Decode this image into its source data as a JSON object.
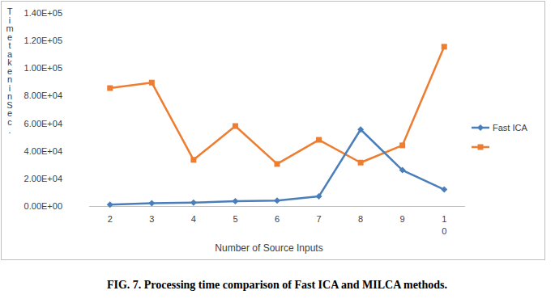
{
  "chart_data": {
    "type": "line",
    "caption": "FIG. 7. Processing time comparison of Fast ICA and MILCA methods.",
    "x_label": "Number of Source Inputs",
    "y_label": "Time taken in Sec.",
    "categories": [
      "2",
      "3",
      "4",
      "5",
      "6",
      "7",
      "8",
      "9",
      "10"
    ],
    "series": [
      {
        "name": "Fast ICA",
        "color": "#4a7ebb",
        "marker": "diamond",
        "values": [
          1000,
          2000,
          2500,
          3500,
          4000,
          7000,
          55500,
          26000,
          12000
        ]
      },
      {
        "name": null,
        "color": "#ed7d31",
        "marker": "square",
        "values": [
          85500,
          89500,
          33500,
          58000,
          30500,
          48000,
          31500,
          44000,
          115500
        ]
      }
    ],
    "ylim": [
      0,
      140000
    ],
    "yticks": [
      {
        "value": 0,
        "label": "0.00E+00"
      },
      {
        "value": 20000,
        "label": "2.00E+04"
      },
      {
        "value": 40000,
        "label": "4.00E+04"
      },
      {
        "value": 60000,
        "label": "6.00E+04"
      },
      {
        "value": 80000,
        "label": "8.00E+04"
      },
      {
        "value": 100000,
        "label": "1.00E+05"
      },
      {
        "value": 120000,
        "label": "1.20E+05"
      },
      {
        "value": 140000,
        "label": "1.40E+05"
      }
    ],
    "grid": false,
    "legend": "right"
  }
}
